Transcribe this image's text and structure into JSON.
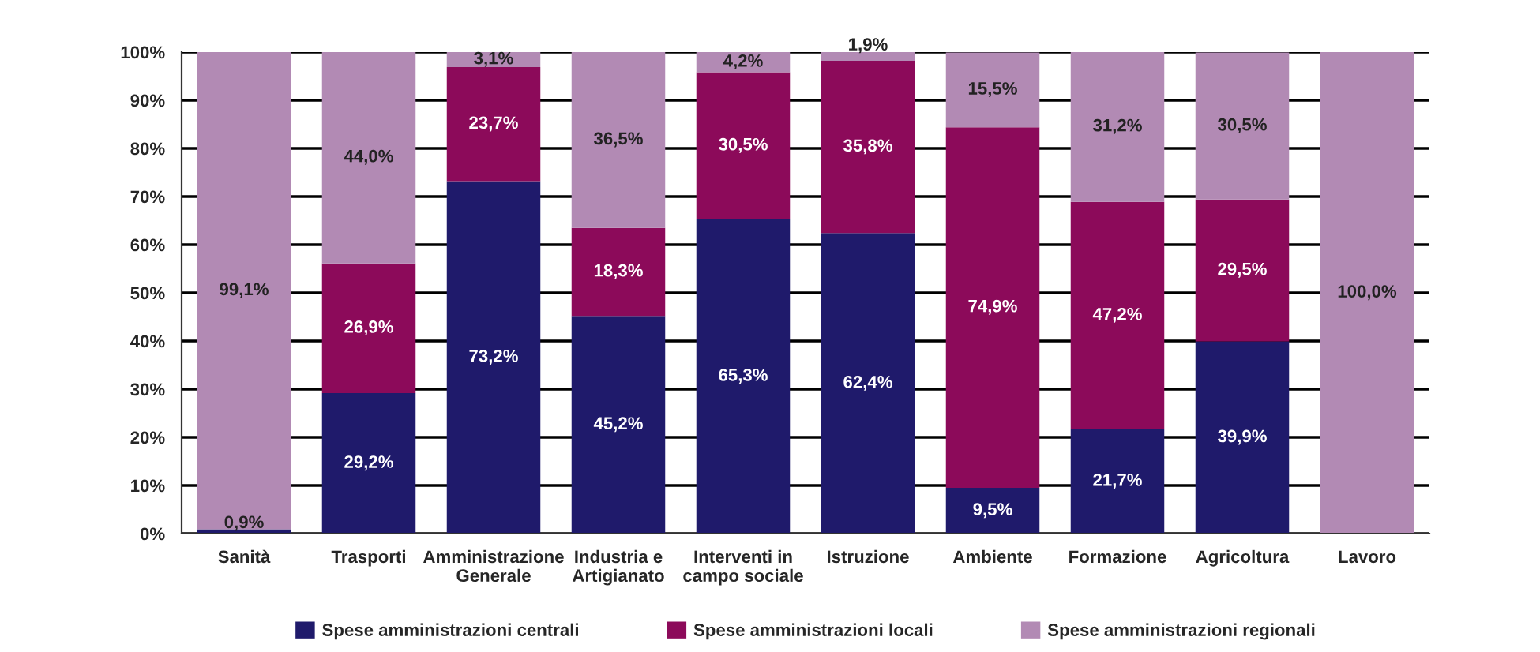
{
  "chart_data": {
    "type": "bar",
    "stacked": true,
    "categories": [
      "Sanità",
      "Trasporti",
      "Amministrazione\nGenerale",
      "Industria e\nArtigianato",
      "Interventi in\ncampo sociale",
      "Istruzione",
      "Ambiente",
      "Formazione",
      "Agricoltura",
      "Lavoro"
    ],
    "series": [
      {
        "name": "Spese amministrazioni centrali",
        "color": "#1f1a6b",
        "values": [
          0.9,
          29.2,
          73.2,
          45.2,
          65.3,
          62.4,
          9.5,
          21.7,
          39.9,
          null
        ],
        "value_labels": [
          "0,9%",
          "29,2%",
          "73,2%",
          "45,2%",
          "65,3%",
          "62,4%",
          "9,5%",
          "21,7%",
          "39,9%",
          null
        ]
      },
      {
        "name": "Spese amministrazioni locali",
        "color": "#8c0a5a",
        "values": [
          null,
          26.9,
          23.7,
          18.3,
          30.5,
          35.8,
          74.9,
          47.2,
          29.5,
          null
        ],
        "value_labels": [
          null,
          "26,9%",
          "23,7%",
          "18,3%",
          "30,5%",
          "35,8%",
          "74,9%",
          "47,2%",
          "29,5%",
          null
        ]
      },
      {
        "name": "Spese amministrazioni regionali",
        "color": "#b28ab4",
        "values": [
          99.1,
          44.0,
          3.1,
          36.5,
          4.2,
          1.9,
          15.5,
          31.2,
          30.5,
          100.0
        ],
        "value_labels": [
          "99,1%",
          "44,0%",
          "3,1%",
          "36,5%",
          "4,2%",
          "1,9%",
          "15,5%",
          "31,2%",
          "30,5%",
          "100,0%"
        ]
      }
    ],
    "ylim": [
      0,
      100
    ],
    "yticks": [
      {
        "value": 0,
        "label": "0%"
      },
      {
        "value": 10,
        "label": "10%"
      },
      {
        "value": 20,
        "label": "20%"
      },
      {
        "value": 30,
        "label": "30%"
      },
      {
        "value": 40,
        "label": "40%"
      },
      {
        "value": 50,
        "label": "50%"
      },
      {
        "value": 60,
        "label": "60%"
      },
      {
        "value": 70,
        "label": "70%"
      },
      {
        "value": 80,
        "label": "80%"
      },
      {
        "value": 90,
        "label": "90%"
      },
      {
        "value": 100,
        "label": "100%"
      }
    ],
    "grid": "y",
    "legend": "bottom"
  }
}
